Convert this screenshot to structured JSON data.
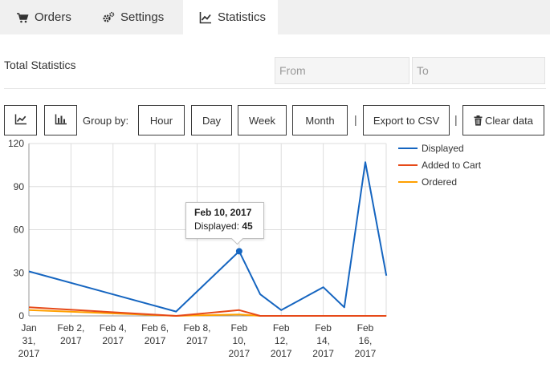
{
  "tabs": [
    {
      "label": "Orders",
      "icon": "cart-icon",
      "active": false
    },
    {
      "label": "Settings",
      "icon": "gears-icon",
      "active": false
    },
    {
      "label": "Statistics",
      "icon": "line-chart-icon",
      "active": true
    }
  ],
  "header": {
    "title": "Total Statistics",
    "from_placeholder": "From",
    "to_placeholder": "To"
  },
  "toolbar": {
    "line_chart_icon": "line-chart-icon",
    "bar_chart_icon": "bar-chart-icon",
    "group_by_label": "Group by:",
    "hour": "Hour",
    "day": "Day",
    "week": "Week",
    "month": "Month",
    "separator": "|",
    "export": "Export to CSV",
    "clear": "Clear data",
    "clear_icon": "trash-icon"
  },
  "tooltip": {
    "date": "Feb 10, 2017",
    "series": "Displayed:",
    "value": "45"
  },
  "chart_data": {
    "type": "line",
    "x": [
      "2017-01-31",
      "2017-02-02",
      "2017-02-04",
      "2017-02-06",
      "2017-02-07",
      "2017-02-08",
      "2017-02-10",
      "2017-02-11",
      "2017-02-12",
      "2017-02-14",
      "2017-02-15",
      "2017-02-16",
      "2017-02-17"
    ],
    "xticks": [
      {
        "label": [
          "Jan",
          "31,",
          "2017"
        ],
        "date": "2017-01-31"
      },
      {
        "label": [
          "Feb 2,",
          "2017"
        ],
        "date": "2017-02-02"
      },
      {
        "label": [
          "Feb 4,",
          "2017"
        ],
        "date": "2017-02-04"
      },
      {
        "label": [
          "Feb 6,",
          "2017"
        ],
        "date": "2017-02-06"
      },
      {
        "label": [
          "Feb 8,",
          "2017"
        ],
        "date": "2017-02-08"
      },
      {
        "label": [
          "Feb",
          "10,",
          "2017"
        ],
        "date": "2017-02-10"
      },
      {
        "label": [
          "Feb",
          "12,",
          "2017"
        ],
        "date": "2017-02-12"
      },
      {
        "label": [
          "Feb",
          "14,",
          "2017"
        ],
        "date": "2017-02-14"
      },
      {
        "label": [
          "Feb",
          "16,",
          "2017"
        ],
        "date": "2017-02-16"
      }
    ],
    "yticks": [
      0,
      30,
      60,
      90,
      120
    ],
    "ylim": [
      0,
      120
    ],
    "grid": true,
    "legend_position": "right",
    "series": [
      {
        "name": "Displayed",
        "color": "#1565c0",
        "values": [
          31,
          null,
          null,
          null,
          3,
          null,
          45,
          15,
          4,
          20,
          6,
          107,
          28
        ]
      },
      {
        "name": "Added to Cart",
        "color": "#e64a19",
        "values": [
          6,
          null,
          null,
          null,
          0,
          null,
          4,
          0,
          0,
          0,
          0,
          0,
          0
        ]
      },
      {
        "name": "Ordered",
        "color": "#ffa000",
        "values": [
          4,
          null,
          null,
          null,
          0,
          null,
          1,
          0,
          0,
          0,
          0,
          0,
          0
        ]
      }
    ]
  }
}
